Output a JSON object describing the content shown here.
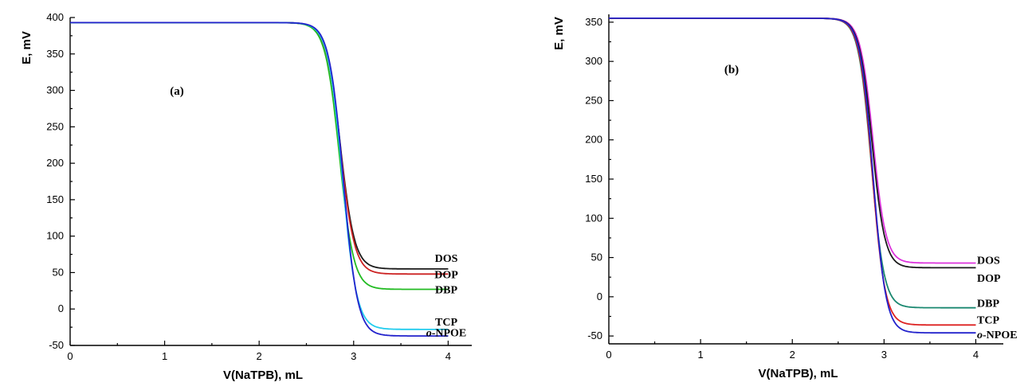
{
  "chart_data": [
    {
      "type": "line",
      "panel_label": "(a)",
      "xlabel": "V(NaTPB), mL",
      "ylabel": "E, mV",
      "xlim": [
        0,
        4.25
      ],
      "ylim": [
        -50,
        400
      ],
      "x_ticks": [
        "0",
        "1",
        "2",
        "3",
        "4"
      ],
      "y_ticks": [
        "-50",
        "0",
        "50",
        "100",
        "150",
        "200",
        "250",
        "300",
        "350",
        "400"
      ],
      "grid": false,
      "legend": "inline labels at right end of curves",
      "series": [
        {
          "name": "DOS",
          "color": "#1a1a1a",
          "top": 393,
          "bottom": 55,
          "mid": 2.86,
          "width": 0.075
        },
        {
          "name": "DOP",
          "color": "#cc2222",
          "top": 393,
          "bottom": 48,
          "mid": 2.86,
          "width": 0.075
        },
        {
          "name": "DBP",
          "color": "#22bb22",
          "top": 393,
          "bottom": 27,
          "mid": 2.85,
          "width": 0.075
        },
        {
          "name": "TCP",
          "color": "#22ccee",
          "top": 393,
          "bottom": -28,
          "mid": 2.88,
          "width": 0.075
        },
        {
          "name": "o-NPOE",
          "color": "#2222cc",
          "top": 393,
          "bottom": -37,
          "mid": 2.89,
          "width": 0.075
        }
      ],
      "series_labels": [
        {
          "series": "DOS",
          "text": "DOS",
          "y": 70
        },
        {
          "series": "DOP",
          "text": "DOP",
          "y": 48
        },
        {
          "series": "DBP",
          "text": "DBP",
          "y": 27
        },
        {
          "series": "TCP",
          "text": "TCP",
          "y": -17
        },
        {
          "series": "o-NPOE",
          "prefix": "o",
          "text": "-NPOE",
          "y": -32
        }
      ]
    },
    {
      "type": "line",
      "panel_label": "(b)",
      "xlabel": "V(NaTPB), mL",
      "ylabel": "E, mV",
      "xlim": [
        0,
        4.3
      ],
      "ylim": [
        -60,
        360
      ],
      "x_ticks": [
        "0",
        "1",
        "2",
        "3",
        "4"
      ],
      "y_ticks": [
        "-50",
        "0",
        "50",
        "100",
        "150",
        "200",
        "250",
        "300",
        "350"
      ],
      "grid": false,
      "legend": "inline labels at right end of curves",
      "series": [
        {
          "name": "DOS",
          "color": "#dd33dd",
          "top": 355,
          "bottom": 43,
          "mid": 2.88,
          "width": 0.07
        },
        {
          "name": "DOP",
          "color": "#1a1a1a",
          "top": 355,
          "bottom": 37,
          "mid": 2.87,
          "width": 0.07
        },
        {
          "name": "DBP",
          "color": "#1a8870",
          "top": 355,
          "bottom": -14,
          "mid": 2.86,
          "width": 0.07
        },
        {
          "name": "TCP",
          "color": "#dd2222",
          "top": 355,
          "bottom": -36,
          "mid": 2.87,
          "width": 0.07
        },
        {
          "name": "o-NPOE",
          "color": "#2222cc",
          "top": 355,
          "bottom": -46,
          "mid": 2.88,
          "width": 0.07
        }
      ],
      "series_labels": [
        {
          "series": "DOS",
          "text": "DOS",
          "y": 47
        },
        {
          "series": "DOP",
          "text": "DOP",
          "y": 24
        },
        {
          "series": "DBP",
          "text": "DBP",
          "y": -8
        },
        {
          "series": "TCP",
          "text": "TCP",
          "y": -29
        },
        {
          "series": "o-NPOE",
          "prefix": "o",
          "text": "-NPOE",
          "y": -48
        }
      ]
    }
  ]
}
